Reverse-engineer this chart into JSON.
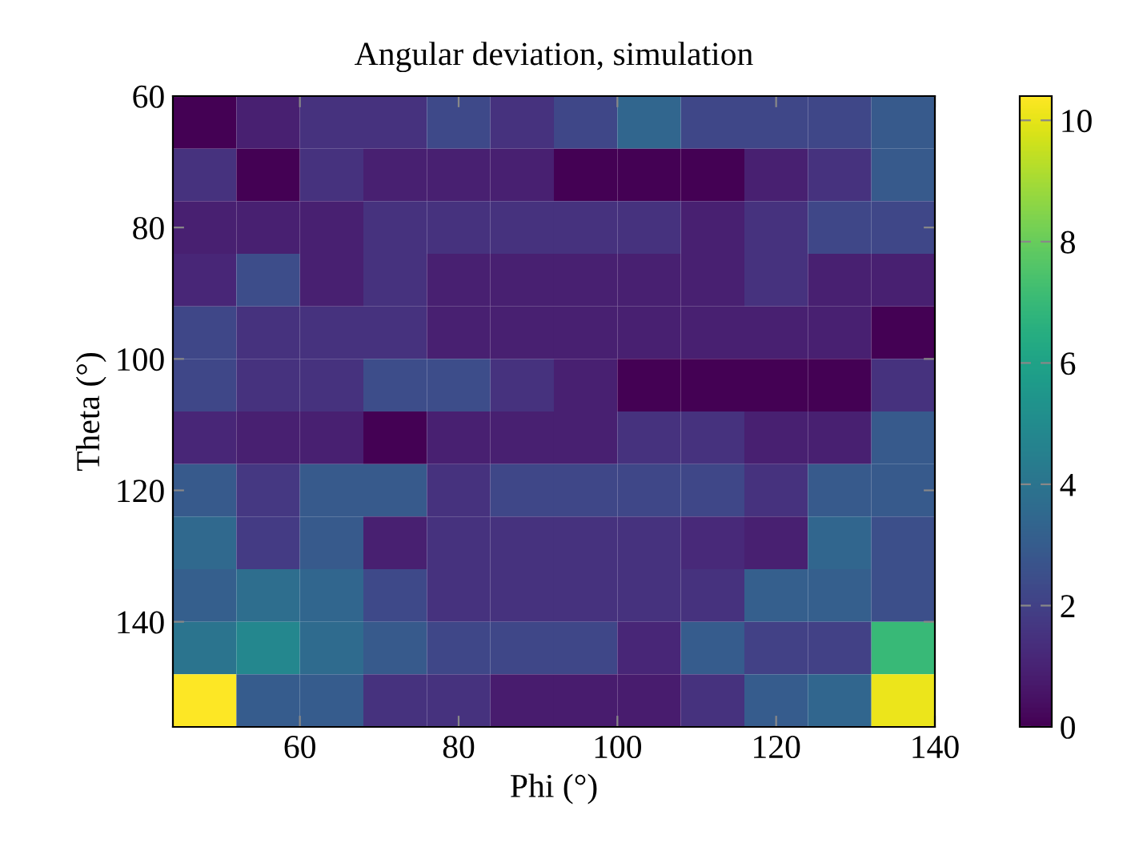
{
  "chart_data": {
    "type": "heatmap",
    "title": "Angular deviation, simulation",
    "xlabel": "Phi (°)",
    "ylabel": "Theta (°)",
    "x": [
      48,
      56,
      64,
      72,
      80,
      88,
      96,
      104,
      112,
      120,
      128,
      136
    ],
    "y": [
      64,
      72,
      80,
      88,
      96,
      104,
      112,
      120,
      128,
      136,
      144,
      152
    ],
    "xlim": [
      44,
      140
    ],
    "ylim": [
      156,
      60
    ],
    "xticks": [
      60,
      80,
      100,
      120,
      140
    ],
    "yticks": [
      60,
      80,
      100,
      120,
      140
    ],
    "clim": [
      0,
      10.4
    ],
    "cticks": [
      0,
      2,
      4,
      6,
      8,
      10
    ],
    "cells": [
      [
        0,
        0.9,
        1.5,
        1.5,
        2.3,
        1.5,
        2.2,
        3.4,
        2.2,
        2.2,
        2.2,
        2.9
      ],
      [
        1.5,
        0,
        1.5,
        0.9,
        0.9,
        0.9,
        0,
        0,
        0,
        0.9,
        1.5,
        2.9
      ],
      [
        0.9,
        0.9,
        0.9,
        1.5,
        1.5,
        1.5,
        1.5,
        1.5,
        0.9,
        1.5,
        2.2,
        2.2
      ],
      [
        1.1,
        2.4,
        0.9,
        1.5,
        0.9,
        0.9,
        0.9,
        0.9,
        0.9,
        1.5,
        0.9,
        0.9
      ],
      [
        2.2,
        1.5,
        1.5,
        1.5,
        0.9,
        0.9,
        0.9,
        0.9,
        0.9,
        0.9,
        0.9,
        0
      ],
      [
        2.2,
        1.5,
        1.5,
        2.4,
        2.4,
        1.5,
        0.9,
        0,
        0,
        0,
        0,
        1.5
      ],
      [
        1.1,
        0.9,
        0.9,
        0,
        0.9,
        0.9,
        0.9,
        1.5,
        1.5,
        0.9,
        0.9,
        2.9
      ],
      [
        2.9,
        1.7,
        2.9,
        2.9,
        1.5,
        2.2,
        2.2,
        2.2,
        2.2,
        1.5,
        2.9,
        2.9
      ],
      [
        3.5,
        1.8,
        2.9,
        0.9,
        1.5,
        1.5,
        1.5,
        1.5,
        1.2,
        0.9,
        3.4,
        2.5
      ],
      [
        3.1,
        3.7,
        3.4,
        2.3,
        1.5,
        1.5,
        1.5,
        1.5,
        1.5,
        3.1,
        3.1,
        2.5
      ],
      [
        4.0,
        4.8,
        3.6,
        2.9,
        2.2,
        2.2,
        2.2,
        1.1,
        3.0,
        2.0,
        2.0,
        7.0
      ],
      [
        10.4,
        3.0,
        3.0,
        1.5,
        1.5,
        0.8,
        0.8,
        0.8,
        1.5,
        3.0,
        3.4,
        10.1
      ]
    ]
  }
}
